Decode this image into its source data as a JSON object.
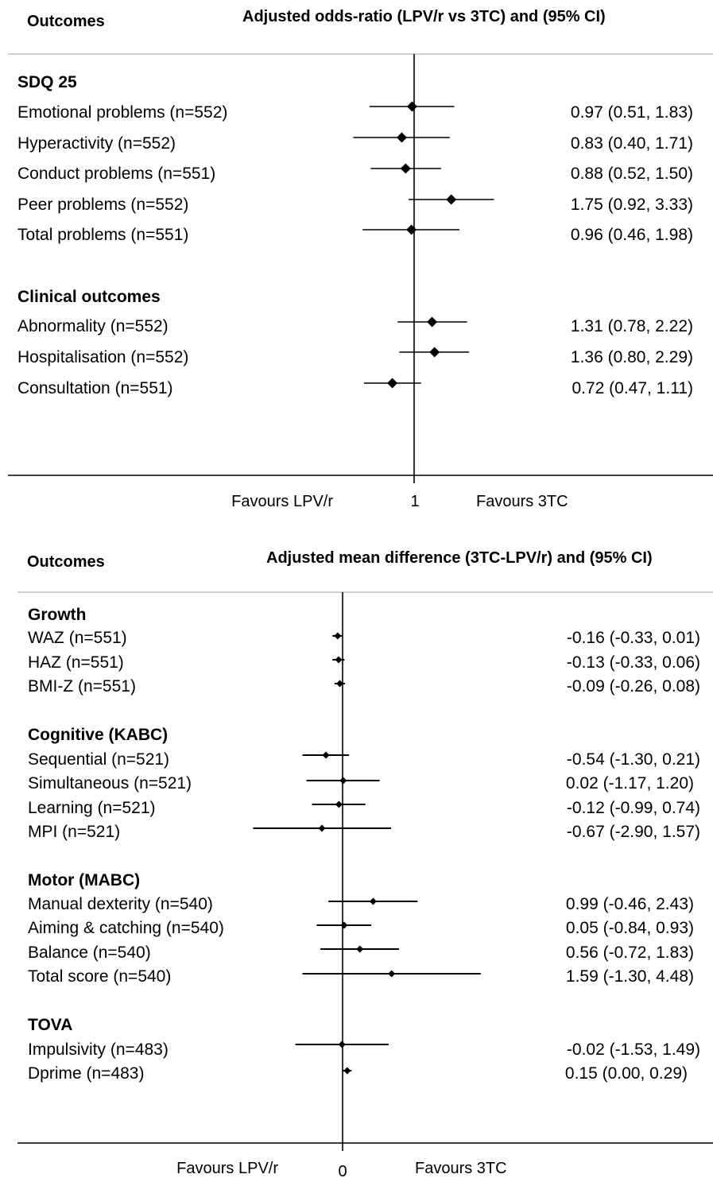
{
  "panels": [
    {
      "id": "odds-ratio",
      "outcomes_header": "Outcomes",
      "estimate_header": "Adjusted odds-ratio (LPV/r vs 3TC) and (95% CI)",
      "favours_left": "Favours LPV/r",
      "favours_right": "Favours 3TC",
      "reference_label": "1",
      "groups": [
        {
          "title": "SDQ 25",
          "rows": [
            {
              "label": "Emotional problems (n=552)",
              "ci_text": "0.97 (0.51, 1.83)"
            },
            {
              "label": "Hyperactivity (n=552)",
              "ci_text": "0.83 (0.40, 1.71)"
            },
            {
              "label": "Conduct problems (n=551)",
              "ci_text": "0.88 (0.52, 1.50)"
            },
            {
              "label": "Peer problems (n=552)",
              "ci_text": "1.75 (0.92, 3.33)"
            },
            {
              "label": "Total problems (n=551)",
              "ci_text": "0.96 (0.46, 1.98)"
            }
          ]
        },
        {
          "title": "Clinical outcomes",
          "rows": [
            {
              "label": "Abnormality (n=552)",
              "ci_text": "1.31 (0.78, 2.22)"
            },
            {
              "label": "Hospitalisation (n=552)",
              "ci_text": "1.36 (0.80, 2.29)"
            },
            {
              "label": "Consultation (n=551)",
              "ci_text": "0.72 (0.47, 1.11)"
            }
          ]
        }
      ]
    },
    {
      "id": "mean-difference",
      "outcomes_header": "Outcomes",
      "estimate_header": "Adjusted mean difference (3TC-LPV/r) and (95% CI)",
      "favours_left": "Favours LPV/r",
      "favours_right": "Favours 3TC",
      "reference_label": "0",
      "groups": [
        {
          "title": "Growth",
          "rows": [
            {
              "label": "WAZ (n=551)",
              "ci_text": "-0.16 (-0.33, 0.01)"
            },
            {
              "label": "HAZ (n=551)",
              "ci_text": "-0.13 (-0.33, 0.06)"
            },
            {
              "label": "BMI-Z (n=551)",
              "ci_text": "-0.09 (-0.26, 0.08)"
            }
          ]
        },
        {
          "title": "Cognitive (KABC)",
          "rows": [
            {
              "label": "Sequential (n=521)",
              "ci_text": "-0.54 (-1.30, 0.21)"
            },
            {
              "label": "Simultaneous (n=521)",
              "ci_text": "0.02 (-1.17, 1.20)"
            },
            {
              "label": "Learning (n=521)",
              "ci_text": "-0.12 (-0.99, 0.74)"
            },
            {
              "label": "MPI (n=521)",
              "ci_text": "-0.67 (-2.90, 1.57)"
            }
          ]
        },
        {
          "title": "Motor (MABC)",
          "rows": [
            {
              "label": "Manual dexterity (n=540)",
              "ci_text": "0.99 (-0.46, 2.43)"
            },
            {
              "label": "Aiming & catching (n=540)",
              "ci_text": "0.05 (-0.84, 0.93)"
            },
            {
              "label": "Balance (n=540)",
              "ci_text": "0.56 (-0.72, 1.83)"
            },
            {
              "label": "Total score (n=540)",
              "ci_text": "1.59 (-1.30, 4.48)"
            }
          ]
        },
        {
          "title": "TOVA",
          "rows": [
            {
              "label": "Impulsivity (n=483)",
              "ci_text": "-0.02 (-1.53, 1.49)"
            },
            {
              "label": "Dprime (n=483)",
              "ci_text": "0.15 (0.00, 0.29)"
            }
          ]
        }
      ]
    }
  ],
  "chart_data": [
    {
      "type": "forest",
      "title": "Adjusted odds-ratio (LPV/r vs 3TC) and (95% CI)",
      "reference_value": 1,
      "scale": "log",
      "x_axis_labels": [
        "Favours LPV/r",
        "1",
        "Favours 3TC"
      ],
      "series": [
        {
          "points": [
            {
              "category": "Emotional problems (n=552)",
              "estimate": 0.97,
              "lower": 0.51,
              "upper": 1.83
            },
            {
              "category": "Hyperactivity (n=552)",
              "estimate": 0.83,
              "lower": 0.4,
              "upper": 1.71
            },
            {
              "category": "Conduct problems (n=551)",
              "estimate": 0.88,
              "lower": 0.52,
              "upper": 1.5
            },
            {
              "category": "Peer problems (n=552)",
              "estimate": 1.75,
              "lower": 0.92,
              "upper": 3.33
            },
            {
              "category": "Total problems (n=551)",
              "estimate": 0.96,
              "lower": 0.46,
              "upper": 1.98
            },
            {
              "category": "Abnormality (n=552)",
              "estimate": 1.31,
              "lower": 0.78,
              "upper": 2.22
            },
            {
              "category": "Hospitalisation (n=552)",
              "estimate": 1.36,
              "lower": 0.8,
              "upper": 2.29
            },
            {
              "category": "Consultation (n=551)",
              "estimate": 0.72,
              "lower": 0.47,
              "upper": 1.11
            }
          ]
        }
      ]
    },
    {
      "type": "forest",
      "title": "Adjusted mean difference (3TC-LPV/r) and (95% CI)",
      "reference_value": 0,
      "scale": "linear",
      "x_axis_labels": [
        "Favours LPV/r",
        "0",
        "Favours 3TC"
      ],
      "series": [
        {
          "points": [
            {
              "category": "WAZ (n=551)",
              "estimate": -0.16,
              "lower": -0.33,
              "upper": 0.01
            },
            {
              "category": "HAZ (n=551)",
              "estimate": -0.13,
              "lower": -0.33,
              "upper": 0.06
            },
            {
              "category": "BMI-Z (n=551)",
              "estimate": -0.09,
              "lower": -0.26,
              "upper": 0.08
            },
            {
              "category": "Sequential (n=521)",
              "estimate": -0.54,
              "lower": -1.3,
              "upper": 0.21
            },
            {
              "category": "Simultaneous (n=521)",
              "estimate": 0.02,
              "lower": -1.17,
              "upper": 1.2
            },
            {
              "category": "Learning (n=521)",
              "estimate": -0.12,
              "lower": -0.99,
              "upper": 0.74
            },
            {
              "category": "MPI (n=521)",
              "estimate": -0.67,
              "lower": -2.9,
              "upper": 1.57
            },
            {
              "category": "Manual dexterity (n=540)",
              "estimate": 0.99,
              "lower": -0.46,
              "upper": 2.43
            },
            {
              "category": "Aiming & catching (n=540)",
              "estimate": 0.05,
              "lower": -0.84,
              "upper": 0.93
            },
            {
              "category": "Balance (n=540)",
              "estimate": 0.56,
              "lower": -0.72,
              "upper": 1.83
            },
            {
              "category": "Total score (n=540)",
              "estimate": 1.59,
              "lower": -1.3,
              "upper": 4.48
            },
            {
              "category": "Impulsivity (n=483)",
              "estimate": -0.02,
              "lower": -1.53,
              "upper": 1.49
            },
            {
              "category": "Dprime (n=483)",
              "estimate": 0.15,
              "lower": 0.0,
              "upper": 0.29
            }
          ]
        }
      ]
    }
  ]
}
